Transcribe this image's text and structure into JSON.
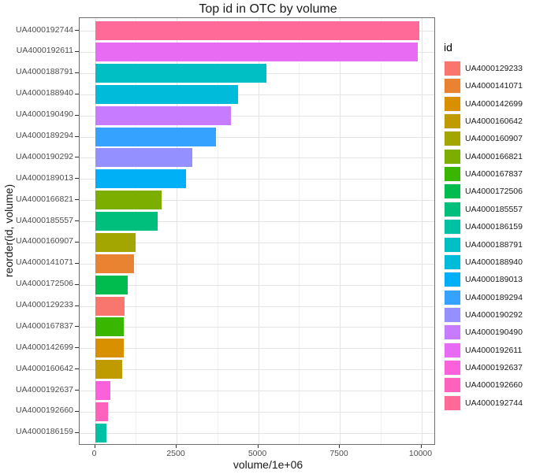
{
  "chart_data": {
    "type": "bar",
    "orientation": "horizontal",
    "title": "Top id in OTC by volume",
    "xlabel": "volume/1e+06",
    "ylabel": "reorder(id, volume)",
    "x_ticks": [
      0,
      2500,
      5000,
      7500,
      10000
    ],
    "x_minor_ticks": [
      1250,
      3750,
      6250,
      8750
    ],
    "xlim": [
      -470,
      10440
    ],
    "grid": true,
    "legend_position": "right",
    "bars": [
      {
        "id": "UA4000192744",
        "value": 9930
      },
      {
        "id": "UA4000192611",
        "value": 9900
      },
      {
        "id": "UA4000188791",
        "value": 5250
      },
      {
        "id": "UA4000188940",
        "value": 4380
      },
      {
        "id": "UA4000190490",
        "value": 4170
      },
      {
        "id": "UA4000189294",
        "value": 3710
      },
      {
        "id": "UA4000190292",
        "value": 2980
      },
      {
        "id": "UA4000189013",
        "value": 2790
      },
      {
        "id": "UA4000166821",
        "value": 2040
      },
      {
        "id": "UA4000185557",
        "value": 1920
      },
      {
        "id": "UA4000160907",
        "value": 1240
      },
      {
        "id": "UA4000141071",
        "value": 1200
      },
      {
        "id": "UA4000172506",
        "value": 1000
      },
      {
        "id": "UA4000129233",
        "value": 910
      },
      {
        "id": "UA4000167837",
        "value": 880
      },
      {
        "id": "UA4000142699",
        "value": 870
      },
      {
        "id": "UA4000160642",
        "value": 830
      },
      {
        "id": "UA4000192637",
        "value": 470
      },
      {
        "id": "UA4000192660",
        "value": 400
      },
      {
        "id": "UA4000186159",
        "value": 350
      }
    ],
    "colors": {
      "UA4000129233": "#F8766D",
      "UA4000141071": "#EA8331",
      "UA4000142699": "#D89000",
      "UA4000160642": "#C09B00",
      "UA4000160907": "#A3A500",
      "UA4000166821": "#7CAE00",
      "UA4000167837": "#39B600",
      "UA4000172506": "#00BB4E",
      "UA4000185557": "#00BF7D",
      "UA4000186159": "#00C1A3",
      "UA4000188791": "#00BFC4",
      "UA4000188940": "#00BBDA",
      "UA4000189013": "#00B0F6",
      "UA4000189294": "#35A2FF",
      "UA4000190292": "#9590FF",
      "UA4000190490": "#C77CFF",
      "UA4000192611": "#E76BF3",
      "UA4000192637": "#FA62DB",
      "UA4000192660": "#FF62BC",
      "UA4000192744": "#FF6A98"
    },
    "legend": {
      "title": "id",
      "entries": [
        "UA4000129233",
        "UA4000141071",
        "UA4000142699",
        "UA4000160642",
        "UA4000160907",
        "UA4000166821",
        "UA4000167837",
        "UA4000172506",
        "UA4000185557",
        "UA4000186159",
        "UA4000188791",
        "UA4000188940",
        "UA4000189013",
        "UA4000189294",
        "UA4000190292",
        "UA4000190490",
        "UA4000192611",
        "UA4000192637",
        "UA4000192660",
        "UA4000192744"
      ]
    }
  }
}
